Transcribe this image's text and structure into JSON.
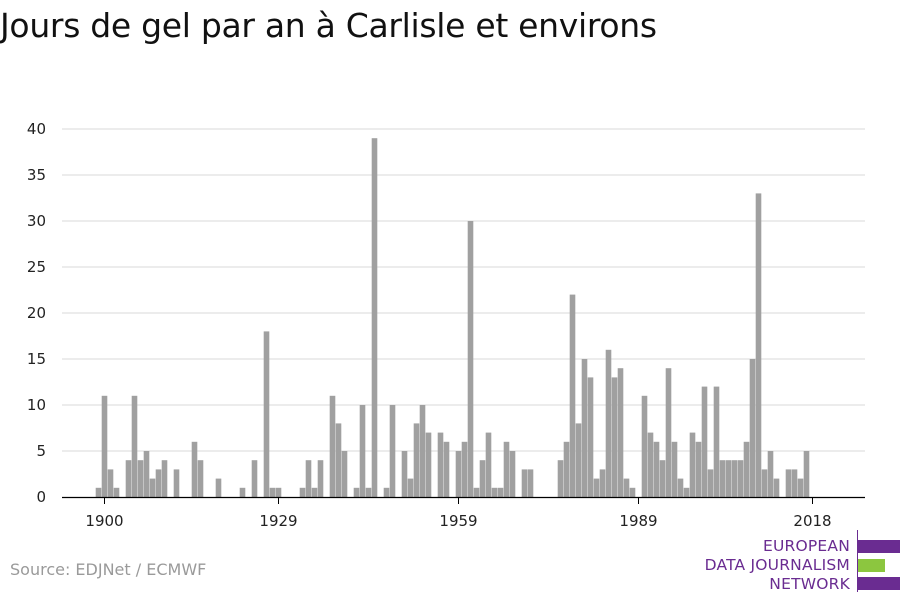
{
  "title": "Jours de gel par an à Carlisle et environs",
  "source": "Source: EDJNet / ECMWF",
  "logo": {
    "lines": [
      "EUROPEAN",
      "DATA JOURNALISM",
      "NETWORK"
    ],
    "colors": {
      "purple": "#6a2c91",
      "green": "#8cc63f"
    }
  },
  "colors": {
    "bar": "#a0a0a0",
    "grid": "#d9d9d9",
    "axis": "#000000"
  },
  "chart_data": {
    "type": "bar",
    "title": "Jours de gel par an à Carlisle et environs",
    "xlabel": "",
    "ylabel": "",
    "ylim": [
      0,
      40
    ],
    "yticks": [
      0,
      5,
      10,
      15,
      20,
      25,
      30,
      35,
      40
    ],
    "xticks": [
      1900,
      1929,
      1959,
      1989,
      2018
    ],
    "grid": true,
    "categories": [
      1899,
      1900,
      1901,
      1902,
      1903,
      1904,
      1905,
      1906,
      1907,
      1908,
      1909,
      1910,
      1911,
      1912,
      1913,
      1914,
      1915,
      1916,
      1917,
      1918,
      1919,
      1920,
      1921,
      1922,
      1923,
      1924,
      1925,
      1926,
      1927,
      1928,
      1929,
      1930,
      1931,
      1932,
      1933,
      1934,
      1935,
      1936,
      1937,
      1938,
      1939,
      1940,
      1941,
      1942,
      1943,
      1944,
      1945,
      1946,
      1947,
      1948,
      1949,
      1950,
      1951,
      1952,
      1953,
      1954,
      1955,
      1956,
      1957,
      1958,
      1959,
      1960,
      1961,
      1962,
      1963,
      1964,
      1965,
      1966,
      1967,
      1968,
      1969,
      1970,
      1971,
      1972,
      1973,
      1974,
      1975,
      1976,
      1977,
      1978,
      1979,
      1980,
      1981,
      1982,
      1983,
      1984,
      1985,
      1986,
      1987,
      1988,
      1989,
      1990,
      1991,
      1992,
      1993,
      1994,
      1995,
      1996,
      1997,
      1998,
      1999,
      2000,
      2001,
      2002,
      2003,
      2004,
      2005,
      2006,
      2007,
      2008,
      2009,
      2010,
      2011,
      2012,
      2013,
      2014,
      2015,
      2016,
      2017,
      2018,
      2019
    ],
    "values": [
      1,
      11,
      3,
      1,
      0,
      4,
      11,
      4,
      5,
      2,
      3,
      4,
      0,
      3,
      0,
      0,
      6,
      4,
      0,
      0,
      2,
      0,
      0,
      0,
      1,
      0,
      4,
      0,
      18,
      1,
      1,
      0,
      0,
      0,
      1,
      4,
      1,
      4,
      0,
      11,
      8,
      5,
      0,
      1,
      10,
      1,
      39,
      0,
      1,
      10,
      0,
      5,
      2,
      8,
      10,
      7,
      0,
      7,
      6,
      0,
      5,
      6,
      30,
      1,
      4,
      7,
      1,
      1,
      6,
      5,
      0,
      3,
      3,
      0,
      0,
      0,
      0,
      4,
      6,
      22,
      8,
      15,
      13,
      2,
      3,
      16,
      13,
      14,
      2,
      1,
      0,
      11,
      7,
      6,
      4,
      14,
      6,
      2,
      1,
      7,
      6,
      12,
      3,
      12,
      4,
      4,
      4,
      4,
      6,
      15,
      33,
      3,
      5,
      2,
      0,
      3,
      3,
      2,
      5,
      0,
      0
    ]
  }
}
